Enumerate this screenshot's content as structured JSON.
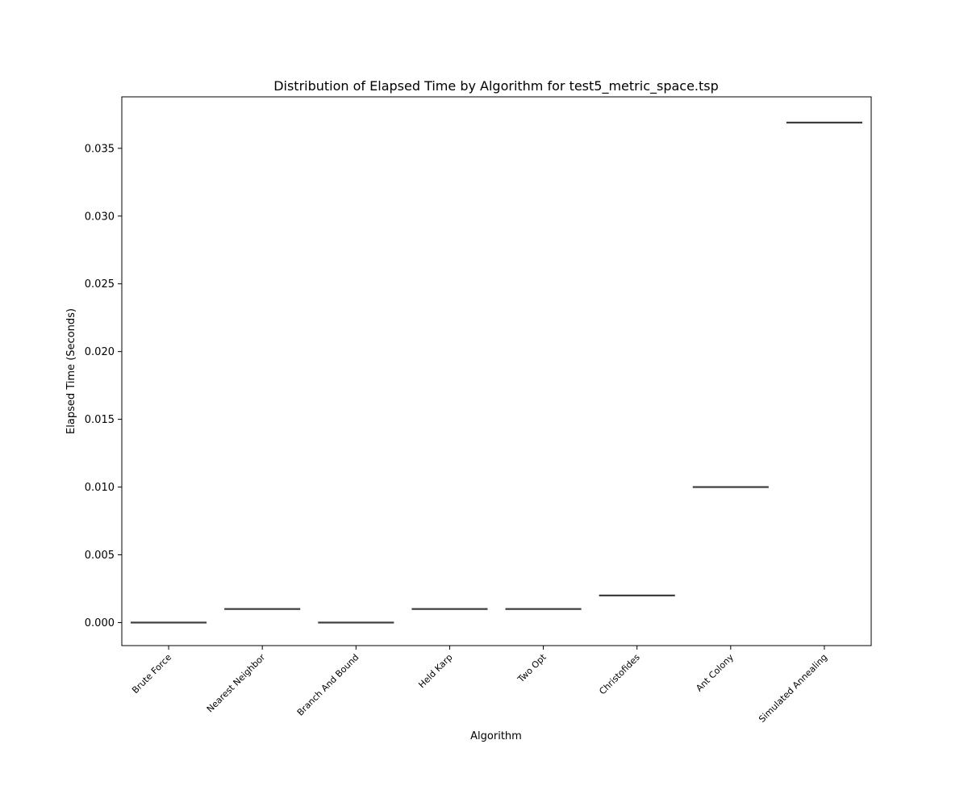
{
  "chart_data": {
    "type": "box",
    "title": "Distribution of Elapsed Time by Algorithm for test5_metric_space.tsp",
    "xlabel": "Algorithm",
    "ylabel": "Elapsed Time (Seconds)",
    "ylim": [
      -0.0017,
      0.0388
    ],
    "yticks": [
      "0.000",
      "0.005",
      "0.010",
      "0.015",
      "0.020",
      "0.025",
      "0.030",
      "0.035"
    ],
    "categories": [
      "Brute Force",
      "Nearest Neighbor",
      "Branch And Bound",
      "Held Karp",
      "Two Opt",
      "Christofides",
      "Ant Colony",
      "Simulated Annealing"
    ],
    "values": [
      0.0,
      0.001,
      0.0,
      0.001,
      0.001,
      0.002,
      0.01,
      0.0369
    ],
    "grid": false,
    "colors": {
      "line": "#3d3d3d",
      "axis": "#000000"
    }
  }
}
